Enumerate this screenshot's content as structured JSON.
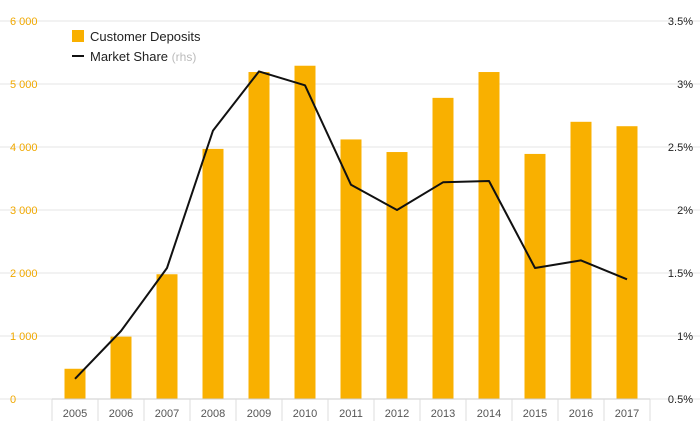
{
  "chart_data": {
    "type": "bar+line",
    "categories": [
      "2005",
      "2006",
      "2007",
      "2008",
      "2009",
      "2010",
      "2011",
      "2012",
      "2013",
      "2014",
      "2015",
      "2016",
      "2017"
    ],
    "series": [
      {
        "name": "Customer Deposits",
        "type": "bar",
        "axis": "left",
        "color": "#f9b000",
        "values": [
          480,
          990,
          1980,
          3970,
          5190,
          5290,
          4120,
          3920,
          4780,
          5190,
          3890,
          4400,
          4330
        ]
      },
      {
        "name": "Market Share",
        "type": "line",
        "axis": "right",
        "color": "#111111",
        "values": [
          0.66,
          1.04,
          1.54,
          2.63,
          3.1,
          2.99,
          2.2,
          2.0,
          2.22,
          2.23,
          1.54,
          1.6,
          1.45
        ]
      }
    ],
    "y_left": {
      "range": [
        0,
        6000
      ],
      "ticks": [
        0,
        1000,
        2000,
        3000,
        4000,
        5000,
        6000
      ],
      "tick_labels": [
        "0",
        "1 000",
        "2 000",
        "3 000",
        "4 000",
        "5 000",
        "6 000"
      ]
    },
    "y_right": {
      "range": [
        0.5,
        3.5
      ],
      "ticks": [
        0.5,
        1,
        1.5,
        2,
        2.5,
        3,
        3.5
      ],
      "tick_labels": [
        "0.5%",
        "1%",
        "1.5%",
        "2%",
        "2.5%",
        "3%",
        "3.5%"
      ]
    },
    "legend": {
      "placement": "top-left",
      "items": [
        {
          "label": "Customer Deposits",
          "marker": "square",
          "color": "#f9b000"
        },
        {
          "label": "Market Share",
          "suffix": "(rhs)",
          "marker": "line",
          "color": "#111111"
        }
      ]
    },
    "grid": "horizontal",
    "grid_color": "#e6e6e6",
    "left_tick_color": "#f0a800"
  }
}
